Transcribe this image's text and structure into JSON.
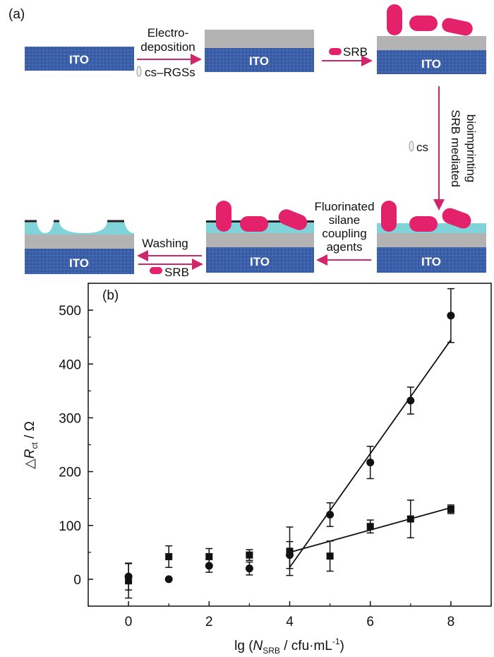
{
  "panel_a": {
    "label": "(a)",
    "substrate_label": "ITO",
    "step1": {
      "line1": "Electro-",
      "line2": "deposition",
      "reagent": "cs–RGSs"
    },
    "step2": {
      "reagent": "SRB"
    },
    "step3": {
      "line1": "SRB mediated",
      "line2": "bioimprinting",
      "reagent": "cs"
    },
    "step4": {
      "line1": "Fluorinated",
      "line2": "silane",
      "line3": "coupling",
      "line4": "agents"
    },
    "step5": {
      "label": "Washing",
      "reagent": "SRB"
    },
    "colors": {
      "ito": "#3b5fa8",
      "film": "#b3b3b3",
      "silane": "#7fd3d9",
      "bacteria": "#e3226b"
    }
  },
  "panel_b": {
    "label": "(b)",
    "xlabel": "lg (N_SRB / cfu·mL⁻¹)",
    "ylabel": "ΔR_ct / Ω",
    "x_ticks": [
      "0",
      "2",
      "4",
      "6",
      "8"
    ],
    "y_ticks": [
      "0",
      "100",
      "200",
      "300",
      "400",
      "500"
    ]
  },
  "chart_data": {
    "type": "scatter",
    "title": "",
    "xlabel": "lg (N_SRB / cfu·mL⁻¹)",
    "ylabel": "ΔR_ct / Ω",
    "xlim": [
      -1,
      9
    ],
    "ylim": [
      -50,
      550
    ],
    "x_ticks": [
      0,
      2,
      4,
      6,
      8
    ],
    "y_ticks": [
      0,
      100,
      200,
      300,
      400,
      500
    ],
    "grid": false,
    "series": [
      {
        "marker": "circle",
        "x": [
          0,
          1,
          2,
          3,
          4,
          5,
          6,
          7,
          8
        ],
        "y": [
          5,
          0,
          25,
          20,
          45,
          120,
          217,
          332,
          490
        ],
        "err": [
          25,
          0,
          12,
          12,
          25,
          22,
          30,
          25,
          50
        ],
        "fit": {
          "x": [
            4,
            8
          ],
          "y": [
            22,
            445
          ]
        }
      },
      {
        "marker": "square",
        "x": [
          0,
          1,
          2,
          3,
          4,
          5,
          6,
          7,
          8
        ],
        "y": [
          -3,
          42,
          42,
          45,
          52,
          43,
          98,
          112,
          130
        ],
        "err": [
          32,
          20,
          15,
          10,
          45,
          28,
          12,
          35,
          8
        ],
        "fit": {
          "x": [
            4,
            8
          ],
          "y": [
            50,
            133
          ]
        }
      }
    ]
  }
}
